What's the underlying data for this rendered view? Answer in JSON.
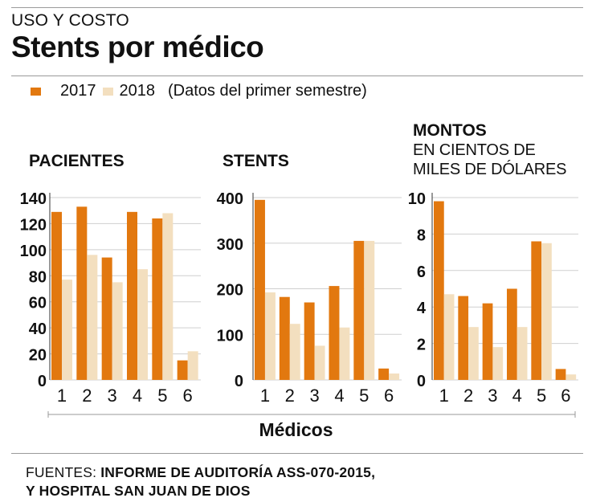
{
  "header": {
    "kicker": "USO Y COSTO",
    "title": "Stents por médico"
  },
  "legend": {
    "series_2017": "2017",
    "series_2018": "2018",
    "note": "(Datos del primer semestre)"
  },
  "colors": {
    "c2017": "#e2780f",
    "c2018": "#f3dfbf",
    "axis": "#9a9a9a"
  },
  "panels": {
    "pacientes": {
      "title": "PACIENTES"
    },
    "stents": {
      "title": "STENTS"
    },
    "montos": {
      "title": "MONTOS",
      "subtitle_1": "EN CIENTOS DE",
      "subtitle_2": "MILES DE DÓLARES"
    }
  },
  "chart_data": [
    {
      "type": "bar",
      "title": "PACIENTES",
      "categories": [
        "1",
        "2",
        "3",
        "4",
        "5",
        "6"
      ],
      "series": [
        {
          "name": "2017",
          "values": [
            129,
            133,
            94,
            129,
            124,
            15
          ]
        },
        {
          "name": "2018",
          "values": [
            77,
            96,
            75,
            85,
            128,
            22
          ]
        }
      ],
      "ylim": [
        0,
        140
      ],
      "yticks": [
        "0",
        "20",
        "40",
        "60",
        "80",
        "100",
        "120",
        "140"
      ]
    },
    {
      "type": "bar",
      "title": "STENTS",
      "categories": [
        "1",
        "2",
        "3",
        "4",
        "5",
        "6"
      ],
      "series": [
        {
          "name": "2017",
          "values": [
            395,
            182,
            170,
            206,
            305,
            25
          ]
        },
        {
          "name": "2018",
          "values": [
            192,
            123,
            75,
            115,
            305,
            14
          ]
        }
      ],
      "ylim": [
        0,
        400
      ],
      "yticks": [
        "0",
        "100",
        "200",
        "300",
        "400"
      ]
    },
    {
      "type": "bar",
      "title": "MONTOS",
      "categories": [
        "1",
        "2",
        "3",
        "4",
        "5",
        "6"
      ],
      "series": [
        {
          "name": "2017",
          "values": [
            9.8,
            4.6,
            4.2,
            5.0,
            7.6,
            0.6
          ]
        },
        {
          "name": "2018",
          "values": [
            4.7,
            2.9,
            1.8,
            2.9,
            7.5,
            0.3
          ]
        }
      ],
      "ylim": [
        0,
        10
      ],
      "yticks": [
        "0",
        "2",
        "4",
        "6",
        "8",
        "10"
      ]
    }
  ],
  "xlabel": "Médicos",
  "sources": {
    "label": "FUENTES: ",
    "line1": "INFORME DE AUDITORÍA ASS-070-2015,",
    "line2": "Y HOSPITAL SAN JUAN DE DIOS"
  }
}
